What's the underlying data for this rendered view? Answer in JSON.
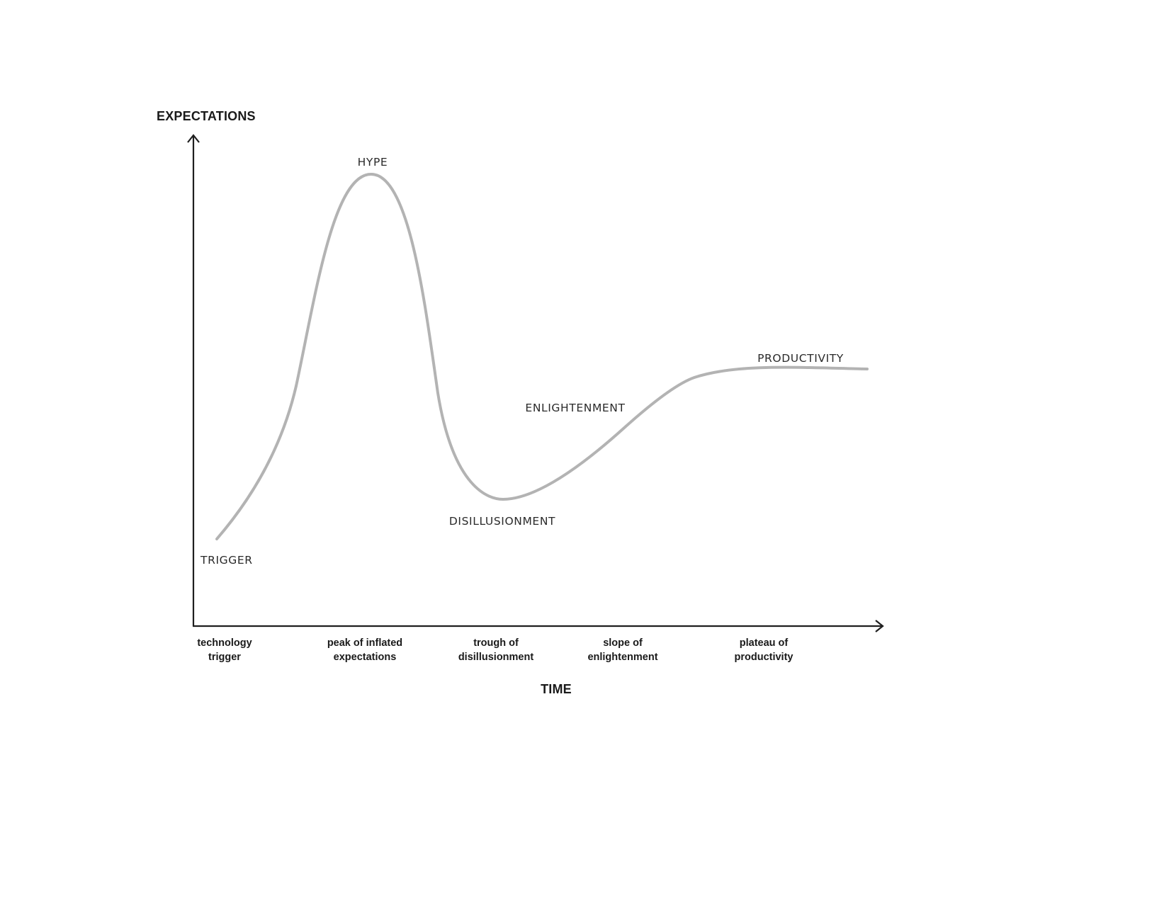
{
  "y_axis": {
    "title": "EXPECTATIONS"
  },
  "x_axis": {
    "title": "TIME"
  },
  "colors": {
    "curve": "#b3b3b3",
    "axes": "#1f1f1f",
    "text": "#1a1a1a"
  },
  "phases": {
    "trigger": "TRIGGER",
    "hype": "HYPE",
    "disillusionment": "DISILLUSIONMENT",
    "enlightenment": "ENLIGHTENMENT",
    "productivity": "PRODUCTIVITY"
  },
  "ticks": [
    {
      "line1": "technology",
      "line2": "trigger"
    },
    {
      "line1": "peak of inflated",
      "line2": "expectations"
    },
    {
      "line1": "trough of",
      "line2": "disillusionment"
    },
    {
      "line1": "slope of",
      "line2": "enlightenment"
    },
    {
      "line1": "plateau of",
      "line2": "productivity"
    }
  ]
}
